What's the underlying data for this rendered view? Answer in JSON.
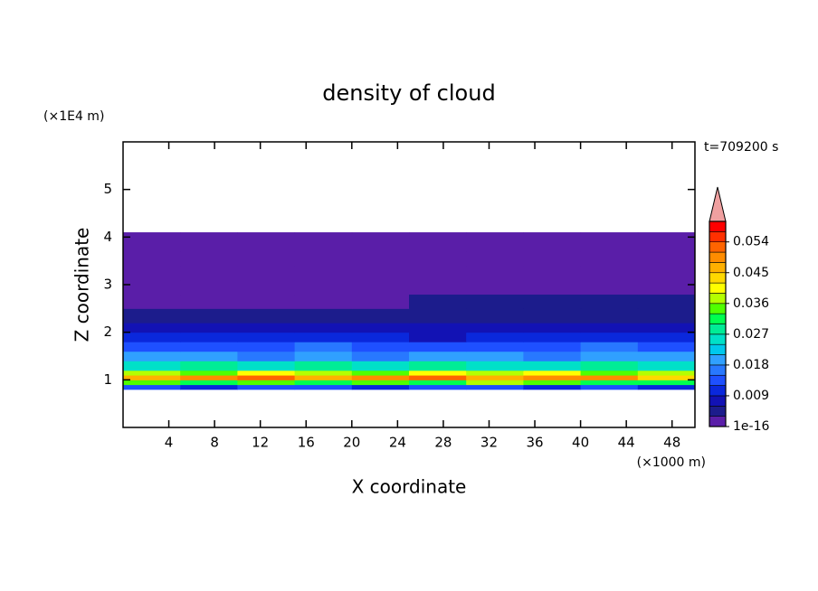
{
  "chart_data": {
    "type": "contour",
    "title": "density of cloud",
    "xlabel": "X coordinate",
    "ylabel": "Z coordinate",
    "x_unit": "(×1000 m)",
    "y_unit": "(×1E4 m)",
    "annotation": "t=709200 s",
    "xlim": [
      0,
      50
    ],
    "ylim": [
      0,
      6
    ],
    "xticks": [
      4,
      8,
      12,
      16,
      20,
      24,
      28,
      32,
      36,
      40,
      44,
      48
    ],
    "yticks": [
      1,
      2,
      3,
      4,
      5
    ],
    "xbins": [
      0,
      5,
      10,
      15,
      20,
      25,
      30,
      35,
      40,
      45,
      50
    ],
    "ybins": [
      0.8,
      0.9,
      1.0,
      1.1,
      1.2,
      1.4,
      1.6,
      1.8,
      2.0,
      2.2,
      2.5,
      2.8,
      3.1,
      3.4,
      3.7,
      4.1
    ],
    "values": [
      [
        0.013,
        0.012,
        0.014,
        0.013,
        0.012,
        0.013,
        0.014,
        0.012,
        0.013,
        0.012
      ],
      [
        0.034,
        0.031,
        0.036,
        0.033,
        0.035,
        0.032,
        0.037,
        0.034,
        0.031,
        0.033
      ],
      [
        0.046,
        0.049,
        0.052,
        0.047,
        0.05,
        0.053,
        0.048,
        0.051,
        0.049,
        0.045
      ],
      [
        0.039,
        0.036,
        0.041,
        0.037,
        0.035,
        0.04,
        0.038,
        0.042,
        0.036,
        0.037
      ],
      [
        0.027,
        0.029,
        0.025,
        0.028,
        0.026,
        0.03,
        0.027,
        0.026,
        0.028,
        0.025
      ],
      [
        0.019,
        0.021,
        0.018,
        0.02,
        0.017,
        0.019,
        0.021,
        0.018,
        0.02,
        0.019
      ],
      [
        0.014,
        0.015,
        0.013,
        0.016,
        0.014,
        0.013,
        0.015,
        0.014,
        0.016,
        0.013
      ],
      [
        0.011,
        0.012,
        0.01,
        0.011,
        0.01,
        0.009,
        0.01,
        0.011,
        0.012,
        0.011
      ],
      [
        0.008,
        0.009,
        0.008,
        0.007,
        0.008,
        0.007,
        0.008,
        0.009,
        0.008,
        0.009
      ],
      [
        0.004,
        0.005,
        0.004,
        0.005,
        0.004,
        0.004,
        0.005,
        0.004,
        0.005,
        0.004
      ],
      [
        0.0025,
        0.002,
        0.0025,
        0.002,
        0.0025,
        0.004,
        0.004,
        0.004,
        0.0035,
        0.004
      ],
      [
        0.002,
        0.0015,
        0.002,
        0.0015,
        0.002,
        0.002,
        0.0025,
        0.002,
        0.0025,
        0.002
      ],
      [
        0.002,
        0.0025,
        0.002,
        0.0025,
        0.002,
        0.0025,
        0.002,
        0.002,
        0.0025,
        0.002
      ],
      [
        0.001,
        0.0015,
        0.001,
        0.001,
        0.0015,
        0.001,
        0.001,
        0.0015,
        0.001,
        0.001
      ],
      [
        0.0005,
        0.0005,
        0.0005,
        0.0005,
        0.0005,
        0.0005,
        0.0005,
        0.0005,
        0.0005,
        0.0005
      ]
    ],
    "clim": [
      1e-16,
      0.06
    ],
    "colors": [
      "#5a1ea8",
      "#1c1c8c",
      "#1212b4",
      "#0a28dc",
      "#1e50ff",
      "#2878ff",
      "#30a0ff",
      "#00c8ec",
      "#00e0c8",
      "#00ec96",
      "#00ff50",
      "#50ff00",
      "#b4ff00",
      "#ffff00",
      "#ffd800",
      "#ffb000",
      "#ff8c00",
      "#ff6400",
      "#ff3000",
      "#ff0000"
    ],
    "extend_color": "#f0a0a0",
    "cticks": [
      {
        "value": 1e-16,
        "label": "1e-16"
      },
      0.009,
      0.018,
      0.027,
      0.036,
      0.045,
      0.054
    ]
  }
}
